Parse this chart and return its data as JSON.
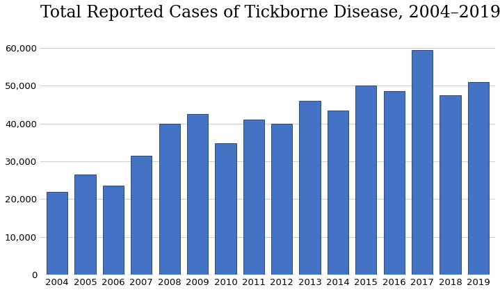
{
  "title": "Total Reported Cases of Tickborne Disease, 2004–2019",
  "years": [
    2004,
    2005,
    2006,
    2007,
    2008,
    2009,
    2010,
    2011,
    2012,
    2013,
    2014,
    2015,
    2016,
    2017,
    2018,
    2019
  ],
  "values": [
    22000,
    26500,
    23500,
    31500,
    40000,
    42500,
    34800,
    41000,
    40000,
    46000,
    43500,
    50000,
    48500,
    59500,
    47500,
    51000
  ],
  "bar_color": "#4472C4",
  "bar_edgecolor": "#1a3a6a",
  "background_color": "#ffffff",
  "grid_color": "#d0d0d0",
  "ylim": [
    0,
    65000
  ],
  "yticks": [
    0,
    10000,
    20000,
    30000,
    40000,
    50000,
    60000
  ],
  "title_fontsize": 17,
  "tick_fontsize": 9.5,
  "title_font": "serif"
}
